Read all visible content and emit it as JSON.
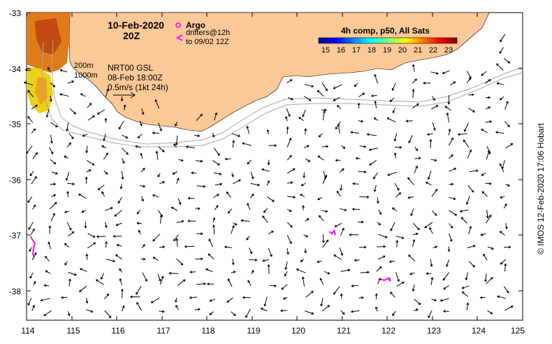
{
  "header": {
    "date": "10-Feb-2020",
    "time": "20Z",
    "argo_label": "Argo",
    "drifters_label": "drifters@12h",
    "drifters_to": "to 09/02 12Z",
    "isobath_200": "200m",
    "isobath_1000": "1000m",
    "sst_source": "NRT00 GSL",
    "sst_time": "08-Feb 18:00Z",
    "scale_label": "0.5m/s (1kt 24h)"
  },
  "colorbar": {
    "title": "4h comp, p50, All Sats",
    "ticks": [
      "15",
      "16",
      "17",
      "18",
      "19",
      "20",
      "21",
      "22",
      "23"
    ]
  },
  "axes": {
    "lon_ticks": [
      "114",
      "115",
      "116",
      "117",
      "118",
      "119",
      "120",
      "121",
      "122",
      "123",
      "124",
      "125"
    ],
    "lat_ticks": [
      "-33",
      "-34",
      "-35",
      "-36",
      "-37",
      "-38"
    ]
  },
  "credit": "© IMOS 12-Feb-2020 17:06 Hobart",
  "colors": {
    "land": "#fbc898",
    "drifter": "#ff00ff",
    "isobath": "#a8a8a8"
  }
}
